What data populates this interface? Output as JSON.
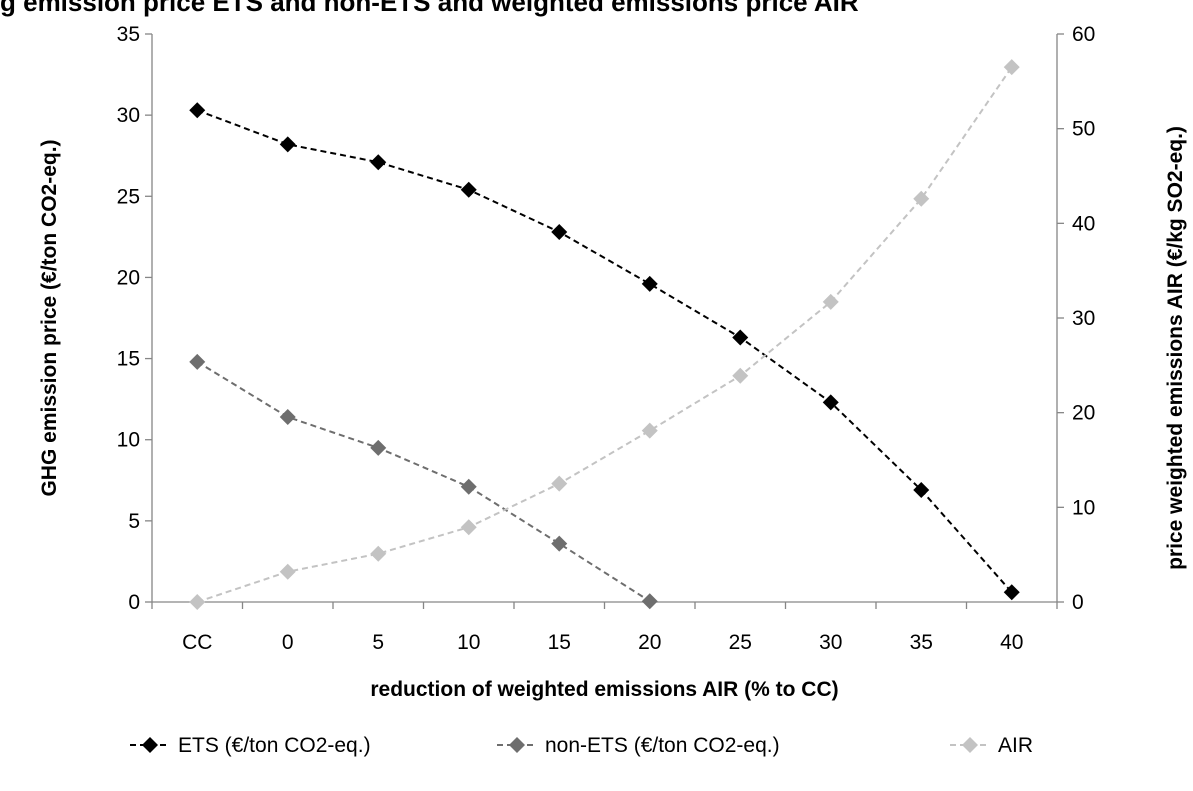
{
  "chart_data": {
    "type": "line",
    "title": "",
    "title_partial": "g emission price ETS and non-ETS and weighted emissions price AIR",
    "categories": [
      "CC",
      "0",
      "5",
      "10",
      "15",
      "20",
      "25",
      "30",
      "35",
      "40"
    ],
    "xlabel": "reduction of weighted emissions AIR (% to CC)",
    "ylabel": "GHG emission price (€/ton CO2-eq.)",
    "y2label": "price weighted emissions AIR (€/kg SO2-eq.)",
    "ylim": [
      0,
      35
    ],
    "y2lim": [
      0,
      60
    ],
    "yticks": [
      "0",
      "5",
      "10",
      "15",
      "20",
      "25",
      "30",
      "35"
    ],
    "y2ticks": [
      "0",
      "10",
      "20",
      "30",
      "40",
      "50",
      "60"
    ],
    "grid": false,
    "legend_position": "bottom",
    "series": [
      {
        "name": "ETS (€/ton CO2-eq.)",
        "axis": "left",
        "color": "#000000",
        "marker": "diamond",
        "line_style": "dashed",
        "values": [
          30.3,
          28.2,
          27.1,
          25.4,
          22.8,
          19.6,
          16.3,
          12.3,
          6.9,
          0.6
        ]
      },
      {
        "name": "non-ETS (€/ton CO2-eq.)",
        "axis": "left",
        "color": "#6e6e6e",
        "marker": "diamond",
        "line_style": "dashed",
        "values": [
          14.8,
          11.4,
          9.5,
          7.1,
          3.6,
          0.05,
          null,
          null,
          null,
          null
        ]
      },
      {
        "name": "AIR",
        "axis": "right",
        "color": "#c3c3c3",
        "marker": "diamond",
        "line_style": "dashed",
        "values": [
          0,
          3.2,
          5.1,
          7.9,
          12.5,
          18.1,
          23.9,
          31.7,
          42.6,
          56.5
        ]
      }
    ]
  }
}
